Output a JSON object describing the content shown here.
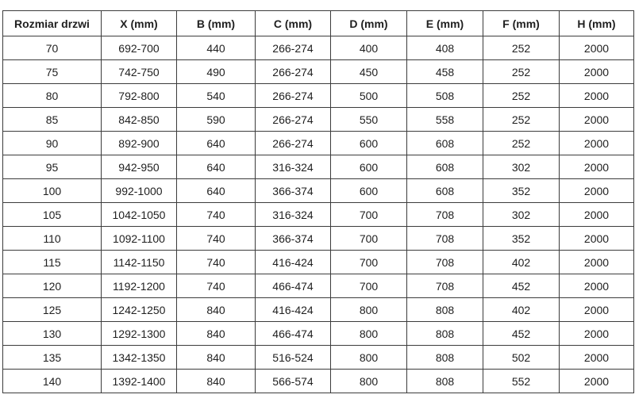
{
  "colors": {
    "background": "#ffffff",
    "border": "#3c3c3c",
    "text": "#1f1f1f"
  },
  "chart_data": {
    "type": "table",
    "title": "",
    "columns": [
      "Rozmiar drzwi",
      "X (mm)",
      "B (mm)",
      "C (mm)",
      "D (mm)",
      "E (mm)",
      "F (mm)",
      "H (mm)"
    ],
    "rows": [
      [
        "70",
        "692-700",
        "440",
        "266-274",
        "400",
        "408",
        "252",
        "2000"
      ],
      [
        "75",
        "742-750",
        "490",
        "266-274",
        "450",
        "458",
        "252",
        "2000"
      ],
      [
        "80",
        "792-800",
        "540",
        "266-274",
        "500",
        "508",
        "252",
        "2000"
      ],
      [
        "85",
        "842-850",
        "590",
        "266-274",
        "550",
        "558",
        "252",
        "2000"
      ],
      [
        "90",
        "892-900",
        "640",
        "266-274",
        "600",
        "608",
        "252",
        "2000"
      ],
      [
        "95",
        "942-950",
        "640",
        "316-324",
        "600",
        "608",
        "302",
        "2000"
      ],
      [
        "100",
        "992-1000",
        "640",
        "366-374",
        "600",
        "608",
        "352",
        "2000"
      ],
      [
        "105",
        "1042-1050",
        "740",
        "316-324",
        "700",
        "708",
        "302",
        "2000"
      ],
      [
        "110",
        "1092-1100",
        "740",
        "366-374",
        "700",
        "708",
        "352",
        "2000"
      ],
      [
        "115",
        "1142-1150",
        "740",
        "416-424",
        "700",
        "708",
        "402",
        "2000"
      ],
      [
        "120",
        "1192-1200",
        "740",
        "466-474",
        "700",
        "708",
        "452",
        "2000"
      ],
      [
        "125",
        "1242-1250",
        "840",
        "416-424",
        "800",
        "808",
        "402",
        "2000"
      ],
      [
        "130",
        "1292-1300",
        "840",
        "466-474",
        "800",
        "808",
        "452",
        "2000"
      ],
      [
        "135",
        "1342-1350",
        "840",
        "516-524",
        "800",
        "808",
        "502",
        "2000"
      ],
      [
        "140",
        "1392-1400",
        "840",
        "566-574",
        "800",
        "808",
        "552",
        "2000"
      ]
    ]
  }
}
